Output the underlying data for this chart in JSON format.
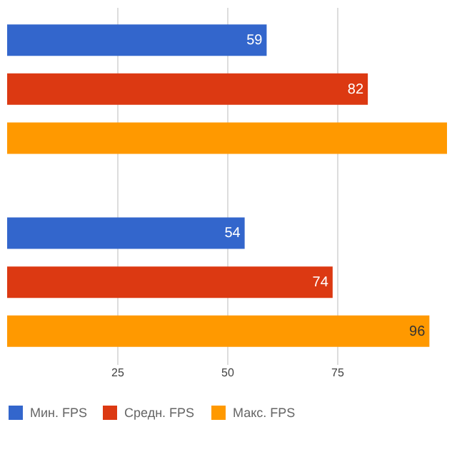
{
  "chart_data": {
    "type": "bar",
    "orientation": "horizontal",
    "categories": [
      null,
      null
    ],
    "series": [
      {
        "name": "Мин. FPS",
        "color": "#3366cc",
        "values": [
          59,
          54
        ],
        "value_labels": [
          "59",
          "54"
        ]
      },
      {
        "name": "Средн. FPS",
        "color": "#dc3912",
        "values": [
          82,
          74
        ],
        "value_labels": [
          "82",
          "74"
        ]
      },
      {
        "name": "Макс. FPS",
        "color": "#ff9900",
        "values": [
          100,
          96
        ],
        "value_labels": [
          null,
          "96"
        ]
      }
    ],
    "xlim": [
      0,
      100
    ],
    "xticks": [
      25,
      50,
      75
    ],
    "grid": "x",
    "legend": "bottom"
  }
}
